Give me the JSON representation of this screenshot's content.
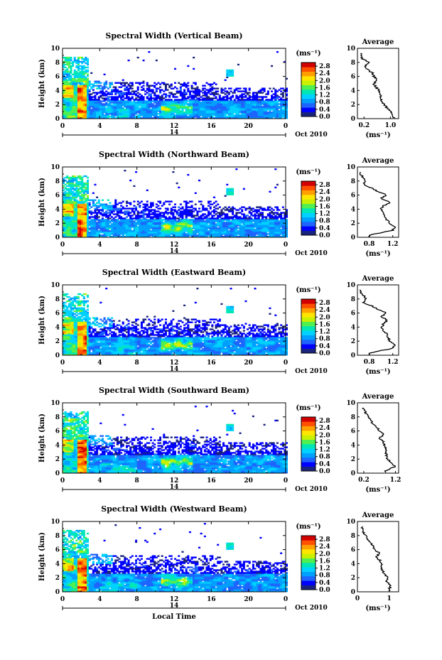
{
  "figure": {
    "xlabel_bottom": "Local Time",
    "date_label": "Oct 2010",
    "day_label": "14",
    "colorbar_unit": "(ms⁻¹)",
    "avg_xlabel": "(ms⁻¹)",
    "avg_title": "Average",
    "colorbar_ticks": [
      "2.8",
      "2.4",
      "2.0",
      "1.6",
      "1.2",
      "0.8",
      "0.4",
      "0.0"
    ],
    "colors": [
      "#1a237e",
      "#0000ff",
      "#1e64ff",
      "#00a0ff",
      "#00d2ff",
      "#00e6b4",
      "#50f050",
      "#c8f000",
      "#ffe600",
      "#ffa000",
      "#ff5000",
      "#d20000"
    ]
  },
  "chart_data": [
    {
      "type": "heatmap",
      "title": "Spectral Width (Vertical Beam)",
      "ylabel": "Height (km)",
      "xlabel": "Local Time",
      "xlim": [
        0,
        24
      ],
      "ylim": [
        0,
        10
      ],
      "xticks": [
        "0",
        "4",
        "8",
        "12",
        "16",
        "20",
        "0"
      ],
      "yticks": [
        "0",
        "2",
        "4",
        "6",
        "8",
        "10"
      ],
      "colorbar": {
        "label": "(ms⁻¹)",
        "range": [
          0,
          3.0
        ]
      },
      "average_profile": {
        "title": "Average",
        "xlabel": "(ms⁻¹)",
        "xticks": [
          "0.2",
          "1.0"
        ],
        "xlim": [
          0,
          1.25
        ],
        "ylim": [
          0,
          10
        ],
        "height_km": [
          0.3,
          1,
          1.5,
          2,
          3,
          4,
          4.5,
          5,
          5.5,
          6,
          6.5,
          7,
          7.5,
          8,
          8.5,
          9
        ],
        "width_ms": [
          1.1,
          1.0,
          0.9,
          0.8,
          0.7,
          0.65,
          0.55,
          0.5,
          0.6,
          0.5,
          0.45,
          0.3,
          0.25,
          0.35,
          0.15,
          0.1
        ]
      }
    },
    {
      "type": "heatmap",
      "title": "Spectral Width (Northward Beam)",
      "ylabel": "Height (km)",
      "xlabel": "Local Time",
      "xlim": [
        0,
        24
      ],
      "ylim": [
        0,
        10
      ],
      "xticks": [
        "0",
        "4",
        "8",
        "12",
        "16",
        "20",
        "0"
      ],
      "yticks": [
        "0",
        "2",
        "4",
        "6",
        "8",
        "10"
      ],
      "colorbar": {
        "label": "(ms⁻¹)",
        "range": [
          0,
          3.0
        ]
      },
      "average_profile": {
        "title": "Average",
        "xlabel": "(ms⁻¹)",
        "xticks": [
          "0.8",
          "1.2"
        ],
        "xlim": [
          0.6,
          1.3
        ],
        "ylim": [
          0,
          10
        ],
        "height_km": [
          0.3,
          1,
          1.5,
          2,
          3,
          4,
          4.5,
          5,
          5.5,
          6,
          6.5,
          7,
          7.5,
          8,
          9
        ],
        "width_ms": [
          0.8,
          1.2,
          1.25,
          1.15,
          1.05,
          1.0,
          1.05,
          1.15,
          1.0,
          1.1,
          0.95,
          0.85,
          0.7,
          0.75,
          0.65
        ]
      }
    },
    {
      "type": "heatmap",
      "title": "Spectral Width (Eastward Beam)",
      "ylabel": "Height (km)",
      "xlabel": "Local Time",
      "xlim": [
        0,
        24
      ],
      "ylim": [
        0,
        10
      ],
      "xticks": [
        "0",
        "4",
        "8",
        "12",
        "16",
        "20",
        "0"
      ],
      "yticks": [
        "0",
        "2",
        "4",
        "6",
        "8",
        "10"
      ],
      "colorbar": {
        "label": "(ms⁻¹)",
        "range": [
          0,
          3.0
        ]
      },
      "average_profile": {
        "title": "Average",
        "xlabel": "(ms⁻¹)",
        "xticks": [
          "0.8",
          "1.2"
        ],
        "xlim": [
          0.6,
          1.3
        ],
        "ylim": [
          0,
          10
        ],
        "height_km": [
          0.3,
          1,
          1.5,
          2,
          3,
          4,
          4.5,
          5,
          5.5,
          6,
          6.5,
          7,
          7.5,
          8,
          9
        ],
        "width_ms": [
          0.8,
          1.2,
          1.25,
          1.15,
          1.1,
          1.0,
          1.05,
          1.1,
          1.0,
          1.1,
          0.95,
          0.85,
          0.7,
          0.75,
          0.65
        ]
      }
    },
    {
      "type": "heatmap",
      "title": "Spectral Width (Southward Beam)",
      "ylabel": "Height (km)",
      "xlabel": "Local Time",
      "xlim": [
        0,
        24
      ],
      "ylim": [
        0,
        10
      ],
      "xticks": [
        "0",
        "4",
        "8",
        "12",
        "16",
        "20",
        "0"
      ],
      "yticks": [
        "0",
        "2",
        "4",
        "6",
        "8",
        "10"
      ],
      "colorbar": {
        "label": "(ms⁻¹)",
        "range": [
          0,
          3.0
        ]
      },
      "average_profile": {
        "title": "Average",
        "xlabel": "(ms⁻¹)",
        "xticks": [
          "0.2",
          "1.2"
        ],
        "xlim": [
          0,
          1.3
        ],
        "ylim": [
          0,
          10
        ],
        "height_km": [
          0.3,
          1,
          1.5,
          2,
          3,
          4,
          4.5,
          5,
          5.5,
          6,
          6.5,
          7,
          7.5,
          8,
          9
        ],
        "width_ms": [
          0.9,
          1.2,
          1.05,
          0.95,
          0.9,
          0.85,
          0.8,
          0.7,
          0.85,
          0.7,
          0.6,
          0.5,
          0.4,
          0.35,
          0.2
        ]
      }
    },
    {
      "type": "heatmap",
      "title": "Spectral Width (Westward Beam)",
      "ylabel": "Height (km)",
      "xlabel": "Local Time",
      "xlim": [
        0,
        24
      ],
      "ylim": [
        0,
        10
      ],
      "xticks": [
        "0",
        "4",
        "8",
        "12",
        "16",
        "20",
        "0"
      ],
      "yticks": [
        "0",
        "2",
        "4",
        "6",
        "8",
        "10"
      ],
      "colorbar": {
        "label": "(ms⁻¹)",
        "range": [
          0,
          3.0
        ]
      },
      "average_profile": {
        "title": "Average",
        "xlabel": "(ms⁻¹)",
        "xticks": [
          "0",
          "1"
        ],
        "xlim": [
          0,
          1.3
        ],
        "ylim": [
          0,
          10
        ],
        "height_km": [
          0.3,
          1,
          1.5,
          2,
          3,
          4,
          4.5,
          5,
          5.5,
          6,
          6.5,
          7,
          7.5,
          8,
          9
        ],
        "width_ms": [
          1.0,
          1.05,
          0.9,
          0.95,
          0.8,
          0.75,
          0.7,
          0.6,
          0.7,
          0.55,
          0.5,
          0.4,
          0.3,
          0.25,
          0.15
        ]
      }
    }
  ]
}
